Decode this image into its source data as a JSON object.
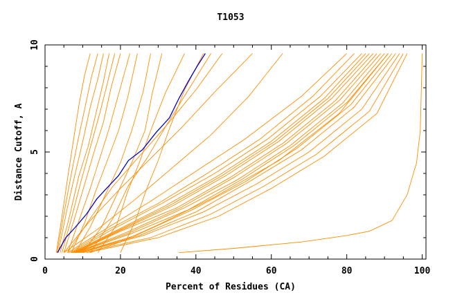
{
  "chart_data": {
    "type": "line",
    "title": "T1053",
    "xlabel": "Percent of Residues (CA)",
    "ylabel": "Distance Cutoff, A",
    "xlim": [
      0,
      101
    ],
    "ylim": [
      0,
      10
    ],
    "x_ticks": [
      0,
      20,
      40,
      60,
      80,
      100
    ],
    "y_ticks": [
      0,
      5,
      10
    ],
    "x_tick_labels": [
      "0",
      "20",
      "40",
      "60",
      "80",
      "100"
    ],
    "y_tick_labels": [
      "0",
      "5",
      "10"
    ],
    "grid": false,
    "colors": {
      "background_series": "#ff8c00",
      "highlight": "#0000cc",
      "axes": "#000000"
    },
    "series": [
      {
        "role": "highlight",
        "x": [
          3.3,
          5.5,
          8.1,
          11.0,
          13.7,
          16.3,
          19.5,
          22.1,
          25.8,
          29.4,
          33.0,
          35.5,
          38.0,
          40.3,
          42.5
        ],
        "y": [
          0.3,
          1.0,
          1.5,
          2.1,
          2.8,
          3.3,
          3.9,
          4.6,
          5.1,
          5.9,
          6.6,
          7.5,
          8.3,
          9.0,
          9.6
        ]
      },
      {
        "role": "other",
        "x": [
          3.0,
          4.5,
          6.0,
          7.5,
          9.0,
          10.5,
          12.0
        ],
        "y": [
          0.3,
          2.0,
          3.8,
          5.5,
          7.2,
          8.6,
          9.6
        ]
      },
      {
        "role": "other",
        "x": [
          3.2,
          5.0,
          7.0,
          8.8,
          10.5,
          12.3,
          14.0
        ],
        "y": [
          0.3,
          2.1,
          4.0,
          5.6,
          7.0,
          8.5,
          9.6
        ]
      },
      {
        "role": "other",
        "x": [
          3.5,
          5.8,
          8.0,
          10.0,
          12.0,
          14.0,
          15.5
        ],
        "y": [
          0.3,
          2.3,
          4.0,
          5.5,
          7.1,
          8.4,
          9.6
        ]
      },
      {
        "role": "other",
        "x": [
          4.0,
          6.5,
          9.0,
          11.5,
          13.5,
          15.5,
          17.0
        ],
        "y": [
          0.3,
          2.0,
          3.9,
          5.3,
          6.8,
          8.3,
          9.6
        ]
      },
      {
        "role": "other",
        "x": [
          4.5,
          7.0,
          9.5,
          12.0,
          14.5,
          16.5,
          18.5
        ],
        "y": [
          0.3,
          1.9,
          3.6,
          5.2,
          6.8,
          8.2,
          9.6
        ]
      },
      {
        "role": "other",
        "x": [
          5.0,
          8.0,
          10.5,
          13.0,
          15.5,
          17.5,
          20.0
        ],
        "y": [
          0.3,
          2.0,
          3.5,
          5.0,
          6.4,
          8.0,
          9.6
        ]
      },
      {
        "role": "other",
        "x": [
          6.0,
          9.0,
          12.0,
          14.5,
          17.0,
          19.5,
          22.5
        ],
        "y": [
          0.3,
          1.8,
          3.3,
          4.7,
          6.1,
          7.7,
          9.6
        ]
      },
      {
        "role": "other",
        "x": [
          7.0,
          10.5,
          13.5,
          16.5,
          19.5,
          22.0,
          24.5
        ],
        "y": [
          0.3,
          1.7,
          3.2,
          4.6,
          6.0,
          7.6,
          9.6
        ]
      },
      {
        "role": "other",
        "x": [
          8.0,
          12.0,
          16.0,
          20.0,
          23.0,
          26.0,
          28.0
        ],
        "y": [
          0.3,
          1.5,
          3.0,
          4.5,
          6.0,
          7.8,
          9.6
        ]
      },
      {
        "role": "other",
        "x": [
          10.0,
          15.0,
          19.0,
          23.0,
          26.5,
          28.5,
          31.0
        ],
        "y": [
          0.3,
          1.5,
          3.0,
          4.5,
          6.0,
          7.8,
          9.6
        ]
      },
      {
        "role": "other",
        "x": [
          14.0,
          19.0,
          22.0,
          25.0,
          28.0,
          32.0,
          37.0
        ],
        "y": [
          0.3,
          1.6,
          3.2,
          4.5,
          6.0,
          7.8,
          9.6
        ]
      },
      {
        "role": "other",
        "x": [
          20.0,
          24.0,
          27.0,
          30.0,
          33.0,
          37.0,
          42.0
        ],
        "y": [
          0.3,
          1.8,
          3.3,
          4.6,
          6.1,
          7.9,
          9.6
        ]
      },
      {
        "role": "other",
        "x": [
          12.0,
          18.0,
          22.0,
          27.0,
          32.0,
          38.0,
          44.0
        ],
        "y": [
          0.3,
          1.9,
          3.4,
          4.7,
          6.2,
          7.9,
          9.6
        ]
      },
      {
        "role": "other",
        "x": [
          6.0,
          12.0,
          18.0,
          25.0,
          32.0,
          40.0,
          47.0
        ],
        "y": [
          0.3,
          1.9,
          3.4,
          4.8,
          6.2,
          7.9,
          9.6
        ]
      },
      {
        "role": "other",
        "x": [
          5.0,
          12.0,
          20.0,
          28.0,
          36.0,
          45.0,
          55.0
        ],
        "y": [
          0.3,
          1.8,
          3.3,
          4.7,
          6.1,
          7.8,
          9.6
        ]
      },
      {
        "role": "other",
        "x": [
          5.0,
          14.0,
          24.0,
          34.0,
          44.0,
          54.0,
          63.0
        ],
        "y": [
          0.3,
          1.4,
          2.8,
          4.3,
          5.8,
          7.6,
          9.6
        ]
      },
      {
        "role": "other",
        "x": [
          6.0,
          16.0,
          28.0,
          40.0,
          53.0,
          68.0,
          80.0
        ],
        "y": [
          0.3,
          1.4,
          2.7,
          4.1,
          5.6,
          7.6,
          9.6
        ]
      },
      {
        "role": "other",
        "x": [
          6.5,
          17.0,
          30.0,
          43.0,
          57.0,
          71.0,
          82.0
        ],
        "y": [
          0.3,
          1.4,
          2.6,
          4.0,
          5.6,
          7.6,
          9.6
        ]
      },
      {
        "role": "other",
        "x": [
          7.0,
          18.0,
          31.0,
          45.0,
          59.0,
          73.0,
          84.0
        ],
        "y": [
          0.3,
          1.4,
          2.6,
          4.0,
          5.6,
          7.6,
          9.6
        ]
      },
      {
        "role": "other",
        "x": [
          7.2,
          18.5,
          32.0,
          46.0,
          60.0,
          74.0,
          85.0
        ],
        "y": [
          0.3,
          1.3,
          2.5,
          3.9,
          5.5,
          7.5,
          9.6
        ]
      },
      {
        "role": "other",
        "x": [
          7.5,
          19.0,
          33.0,
          47.0,
          61.0,
          75.0,
          86.0
        ],
        "y": [
          0.3,
          1.3,
          2.5,
          3.9,
          5.5,
          7.5,
          9.6
        ]
      },
      {
        "role": "other",
        "x": [
          7.8,
          19.5,
          34.0,
          48.0,
          62.0,
          76.0,
          87.0
        ],
        "y": [
          0.3,
          1.3,
          2.5,
          3.9,
          5.5,
          7.5,
          9.6
        ]
      },
      {
        "role": "other",
        "x": [
          8.0,
          20.0,
          35.0,
          49.0,
          63.0,
          77.0,
          88.0
        ],
        "y": [
          0.3,
          1.3,
          2.4,
          3.8,
          5.4,
          7.4,
          9.6
        ]
      },
      {
        "role": "other",
        "x": [
          8.0,
          21.0,
          36.0,
          50.0,
          64.0,
          78.0,
          89.0
        ],
        "y": [
          0.3,
          1.2,
          2.4,
          3.8,
          5.4,
          7.4,
          9.6
        ]
      },
      {
        "role": "other",
        "x": [
          8.2,
          22.0,
          37.0,
          51.0,
          65.0,
          79.0,
          90.0
        ],
        "y": [
          0.3,
          1.2,
          2.4,
          3.7,
          5.3,
          7.3,
          9.6
        ]
      },
      {
        "role": "other",
        "x": [
          8.5,
          23.0,
          38.0,
          52.0,
          66.0,
          80.0,
          91.0
        ],
        "y": [
          0.3,
          1.2,
          2.3,
          3.7,
          5.3,
          7.3,
          9.6
        ]
      },
      {
        "role": "other",
        "x": [
          8.8,
          24.0,
          39.0,
          53.0,
          67.0,
          81.0,
          92.0
        ],
        "y": [
          0.3,
          1.1,
          2.3,
          3.6,
          5.2,
          7.2,
          9.6
        ]
      },
      {
        "role": "other",
        "x": [
          9.0,
          25.0,
          40.0,
          54.0,
          68.0,
          82.0,
          93.0
        ],
        "y": [
          0.3,
          1.1,
          2.2,
          3.6,
          5.1,
          7.1,
          9.6
        ]
      },
      {
        "role": "other",
        "x": [
          9.5,
          26.0,
          42.0,
          56.0,
          70.0,
          84.0,
          94.0
        ],
        "y": [
          0.3,
          1.1,
          2.2,
          3.5,
          5.0,
          7.0,
          9.6
        ]
      },
      {
        "role": "other",
        "x": [
          10.0,
          28.0,
          44.0,
          58.0,
          72.0,
          86.0,
          95.0
        ],
        "y": [
          0.3,
          1.0,
          2.1,
          3.4,
          4.9,
          6.9,
          9.6
        ]
      },
      {
        "role": "other",
        "x": [
          11.0,
          30.0,
          46.0,
          60.0,
          74.0,
          88.0,
          96.0
        ],
        "y": [
          0.3,
          1.0,
          2.0,
          3.3,
          4.8,
          6.8,
          9.6
        ]
      },
      {
        "role": "other",
        "x": [
          12.0,
          20.0,
          30.0,
          45.0,
          62.0,
          78.0,
          91.0
        ],
        "y": [
          0.3,
          0.8,
          1.6,
          2.9,
          4.6,
          6.8,
          9.6
        ]
      },
      {
        "role": "other",
        "x": [
          35.5,
          50.0,
          62.0,
          68.0,
          80.0,
          86.0,
          92.0,
          96.0,
          98.5,
          99.5,
          100.0
        ],
        "y": [
          0.3,
          0.5,
          0.7,
          0.8,
          1.1,
          1.3,
          1.8,
          3.0,
          4.5,
          6.0,
          9.6
        ]
      }
    ]
  }
}
